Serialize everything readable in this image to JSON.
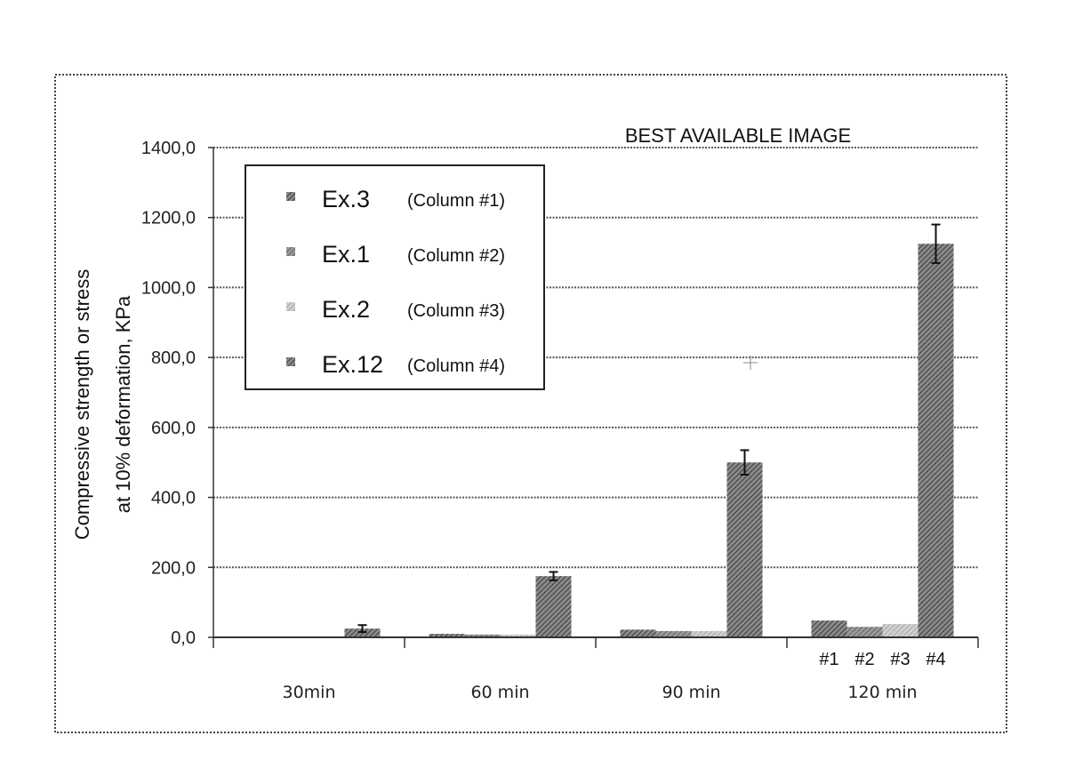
{
  "chart_data": {
    "type": "bar",
    "title": "BEST AVAILABLE IMAGE",
    "ylabel_line1": "Compressive strength or stress",
    "ylabel_line2": "at 10% deformation, KPa",
    "xlabel": "",
    "ylim": [
      0,
      1400
    ],
    "yticks": [
      "0,0",
      "200,0",
      "400,0",
      "600,0",
      "800,0",
      "1000,0",
      "1200,0",
      "1400,0"
    ],
    "categories": [
      "30min",
      "60 min",
      "90 min",
      "120 min"
    ],
    "bar_sublabels": [
      "#1",
      "#2",
      "#3",
      "#4"
    ],
    "series": [
      {
        "name": "Ex.3",
        "column": "(Column #1)",
        "values": [
          0,
          10,
          22,
          48
        ],
        "errors": [
          0,
          0,
          0,
          0
        ]
      },
      {
        "name": "Ex.1",
        "column": "(Column #2)",
        "values": [
          0,
          8,
          18,
          30
        ],
        "errors": [
          0,
          0,
          0,
          0
        ]
      },
      {
        "name": "Ex.2",
        "column": "(Column #3)",
        "values": [
          0,
          8,
          18,
          38
        ],
        "errors": [
          0,
          0,
          0,
          0
        ]
      },
      {
        "name": "Ex.12",
        "column": "(Column #4)",
        "values": [
          25,
          175,
          500,
          1125
        ],
        "errors": [
          10,
          12,
          35,
          55
        ]
      }
    ],
    "grid": true,
    "legend_position": "top-left",
    "colors": {
      "bar_dark": "#6a6a6a",
      "bar_light": "#bdbdbd",
      "grid": "#555555",
      "frame": "#444444"
    }
  }
}
